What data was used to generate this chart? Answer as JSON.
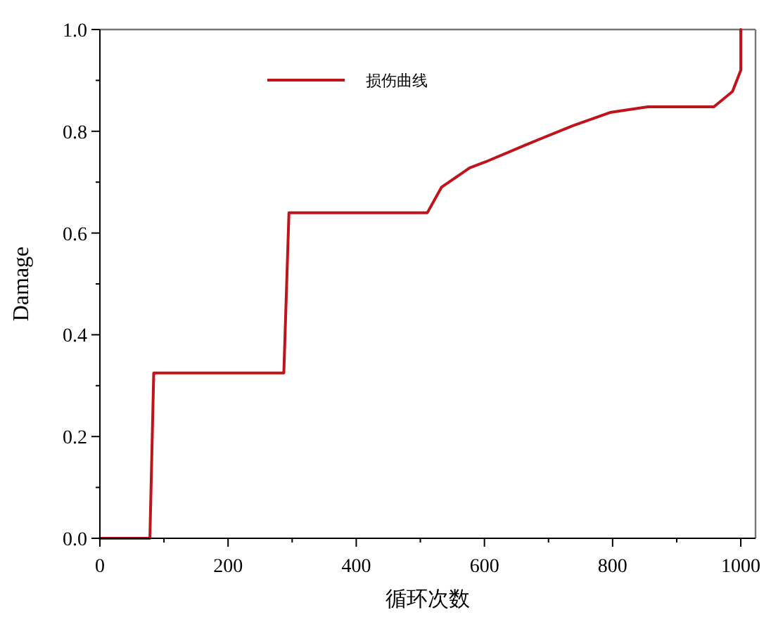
{
  "chart_data": {
    "type": "line",
    "xlabel": "循环次数",
    "ylabel": "Damage",
    "legend": "top",
    "grid": false,
    "line_style": "solid",
    "marker": "none",
    "xlim": [
      0,
      1023
    ],
    "ylim": [
      0,
      1
    ],
    "xticks": [
      0,
      {
        "value": 100,
        "label": null
      },
      200,
      {
        "value": 300,
        "label": null
      },
      400,
      {
        "value": 500,
        "label": null
      },
      600,
      {
        "value": 700,
        "label": null
      },
      800,
      {
        "value": 900,
        "label": null
      },
      1000
    ],
    "yticks": [
      {
        "value": 0,
        "label": "0.0"
      },
      {
        "value": 0.1,
        "label": null
      },
      {
        "value": 0.2,
        "label": "0.2"
      },
      {
        "value": 0.3,
        "label": null
      },
      {
        "value": 0.4,
        "label": "0.4"
      },
      {
        "value": 0.5,
        "label": null
      },
      {
        "value": 0.6,
        "label": "0.6"
      },
      {
        "value": 0.7,
        "label": null
      },
      {
        "value": 0.8,
        "label": "0.8"
      },
      {
        "value": 0.9,
        "label": null
      },
      {
        "value": 1,
        "label": "1.0"
      }
    ],
    "series": [
      {
        "name": "损伤曲线",
        "color": "#c0141c",
        "x": [
          0,
          78,
          84,
          287,
          295,
          511,
          533,
          577,
          602,
          664,
          738,
          796,
          855,
          958,
          987,
          1000,
          1000
        ],
        "values": [
          0,
          0,
          0.325,
          0.325,
          0.64,
          0.64,
          0.69,
          0.728,
          0.74,
          0.773,
          0.811,
          0.837,
          0.848,
          0.848,
          0.878,
          0.92,
          1
        ]
      }
    ]
  }
}
